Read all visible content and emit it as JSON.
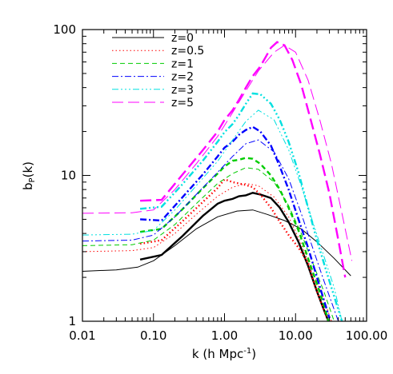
{
  "chart_data": {
    "type": "line",
    "xlabel": "k (h Mpc",
    "xlabel_sup": "-1",
    "xlabel_close": ")",
    "ylabel": "b",
    "ylabel_sub": "P",
    "ylabel_rest": "(k)",
    "x_scale": "log",
    "y_scale": "log",
    "xlim": [
      0.01,
      100
    ],
    "ylim": [
      1,
      100
    ],
    "x_ticks": [
      {
        "value": 0.01,
        "label": "0.01"
      },
      {
        "value": 0.1,
        "label": "0.10"
      },
      {
        "value": 1,
        "label": "1.00"
      },
      {
        "value": 10,
        "label": "10.00"
      },
      {
        "value": 100,
        "label": "100.00"
      }
    ],
    "y_ticks": [
      {
        "value": 1,
        "label": "1"
      },
      {
        "value": 10,
        "label": "10"
      },
      {
        "value": 100,
        "label": "100"
      }
    ],
    "legend_position": "top-left",
    "series": [
      {
        "name": "z=0",
        "color": "#000000",
        "dash": "",
        "legend": true,
        "thin": [
          [
            0.01,
            2.2
          ],
          [
            0.03,
            2.25
          ],
          [
            0.06,
            2.35
          ],
          [
            0.1,
            2.6
          ],
          [
            0.2,
            3.3
          ],
          [
            0.4,
            4.3
          ],
          [
            0.8,
            5.2
          ],
          [
            1.5,
            5.7
          ],
          [
            2.5,
            5.8
          ],
          [
            4,
            5.4
          ],
          [
            7,
            4.9
          ],
          [
            12,
            4.3
          ],
          [
            20,
            3.5
          ],
          [
            35,
            2.7
          ],
          [
            60,
            2.05
          ]
        ],
        "thick": [
          [
            0.065,
            2.65
          ],
          [
            0.13,
            2.85
          ],
          [
            0.25,
            3.8
          ],
          [
            0.5,
            5.3
          ],
          [
            0.8,
            6.4
          ],
          [
            1.0,
            6.7
          ],
          [
            1.3,
            6.9
          ],
          [
            1.6,
            7.2
          ],
          [
            2.0,
            7.3
          ],
          [
            2.5,
            7.6
          ],
          [
            3.2,
            7.4
          ],
          [
            4.5,
            7.0
          ],
          [
            6,
            6.0
          ],
          [
            8,
            4.8
          ],
          [
            11,
            3.5
          ],
          [
            15,
            2.4
          ],
          [
            20,
            1.6
          ],
          [
            25,
            1.2
          ],
          [
            29,
            1.0
          ]
        ]
      },
      {
        "name": "z=0.5",
        "color": "#ff0000",
        "dash": "1.5 3",
        "legend": true,
        "thin": [
          [
            0.01,
            3.0
          ],
          [
            0.05,
            3.05
          ],
          [
            0.1,
            3.2
          ],
          [
            0.2,
            4.0
          ],
          [
            0.4,
            5.4
          ],
          [
            0.8,
            7.2
          ],
          [
            1.3,
            8.3
          ],
          [
            2,
            8.8
          ],
          [
            3,
            8.5
          ],
          [
            5,
            7.1
          ],
          [
            8,
            5.2
          ],
          [
            12,
            3.4
          ],
          [
            17,
            2.2
          ],
          [
            24,
            1.5
          ],
          [
            32,
            1.0
          ]
        ],
        "thick": [
          [
            0.065,
            3.4
          ],
          [
            0.13,
            3.6
          ],
          [
            0.25,
            4.8
          ],
          [
            0.5,
            6.6
          ],
          [
            0.8,
            8.2
          ],
          [
            1.0,
            9.4
          ],
          [
            1.3,
            9.0
          ],
          [
            1.6,
            8.8
          ],
          [
            2.0,
            8.6
          ],
          [
            2.5,
            8.3
          ],
          [
            3.2,
            7.4
          ],
          [
            4.5,
            6.0
          ],
          [
            6,
            4.8
          ],
          [
            8,
            3.9
          ],
          [
            11,
            3.2
          ],
          [
            15,
            2.5
          ],
          [
            20,
            1.6
          ],
          [
            25,
            1.2
          ],
          [
            29,
            1.0
          ]
        ]
      },
      {
        "name": "z=1",
        "color": "#00cc00",
        "dash": "6 4",
        "legend": true,
        "thin": [
          [
            0.01,
            3.3
          ],
          [
            0.05,
            3.35
          ],
          [
            0.1,
            3.6
          ],
          [
            0.2,
            4.6
          ],
          [
            0.4,
            6.4
          ],
          [
            0.8,
            8.8
          ],
          [
            1.3,
            10.3
          ],
          [
            2,
            11.3
          ],
          [
            3,
            11.0
          ],
          [
            5,
            9.0
          ],
          [
            8,
            6.2
          ],
          [
            12,
            4.0
          ],
          [
            17,
            2.6
          ],
          [
            25,
            1.6
          ],
          [
            35,
            1.0
          ]
        ],
        "thick": [
          [
            0.065,
            4.1
          ],
          [
            0.13,
            4.3
          ],
          [
            0.25,
            5.8
          ],
          [
            0.5,
            8.2
          ],
          [
            0.8,
            10.3
          ],
          [
            1.0,
            11.5
          ],
          [
            1.3,
            12.6
          ],
          [
            1.6,
            12.8
          ],
          [
            2.0,
            13.2
          ],
          [
            2.5,
            13.0
          ],
          [
            3.2,
            12.0
          ],
          [
            4.5,
            10.0
          ],
          [
            6,
            8.0
          ],
          [
            8,
            6.0
          ],
          [
            11,
            4.2
          ],
          [
            15,
            2.7
          ],
          [
            20,
            1.8
          ],
          [
            25,
            1.3
          ],
          [
            29,
            1.0
          ]
        ]
      },
      {
        "name": "z=2",
        "color": "#0000ff",
        "dash": "8 3 2 3",
        "legend": true,
        "thin": [
          [
            0.01,
            3.55
          ],
          [
            0.05,
            3.6
          ],
          [
            0.1,
            3.9
          ],
          [
            0.2,
            5.2
          ],
          [
            0.4,
            7.4
          ],
          [
            0.8,
            10.5
          ],
          [
            1.3,
            13.5
          ],
          [
            2,
            16.5
          ],
          [
            3,
            17.5
          ],
          [
            5,
            14.5
          ],
          [
            8,
            9.5
          ],
          [
            12,
            5.5
          ],
          [
            17,
            3.3
          ],
          [
            25,
            1.9
          ],
          [
            40,
            1.0
          ]
        ],
        "thick": [
          [
            0.065,
            5.0
          ],
          [
            0.13,
            4.9
          ],
          [
            0.25,
            7.0
          ],
          [
            0.5,
            10.2
          ],
          [
            0.8,
            13.5
          ],
          [
            1.0,
            15.5
          ],
          [
            1.3,
            17.0
          ],
          [
            1.6,
            19.0
          ],
          [
            2.0,
            20.5
          ],
          [
            2.5,
            21.5
          ],
          [
            3.2,
            20.0
          ],
          [
            4.5,
            16.0
          ],
          [
            6,
            11.5
          ],
          [
            8,
            8.0
          ],
          [
            11,
            5.0
          ],
          [
            15,
            3.2
          ],
          [
            20,
            2.0
          ],
          [
            25,
            1.4
          ],
          [
            30,
            1.05
          ]
        ]
      },
      {
        "name": "z=3",
        "color": "#00e0e0",
        "dash": "8 3 2 3 2 3 2 3",
        "legend": true,
        "thin": [
          [
            0.01,
            3.9
          ],
          [
            0.05,
            3.95
          ],
          [
            0.1,
            4.2
          ],
          [
            0.2,
            5.8
          ],
          [
            0.4,
            8.5
          ],
          [
            0.8,
            12.5
          ],
          [
            1.3,
            17.5
          ],
          [
            2,
            23.5
          ],
          [
            3,
            28.0
          ],
          [
            5,
            24.0
          ],
          [
            8,
            15.0
          ],
          [
            12,
            8.5
          ],
          [
            17,
            5.0
          ],
          [
            25,
            2.8
          ],
          [
            35,
            1.7
          ],
          [
            45,
            1.0
          ]
        ],
        "thick": [
          [
            0.065,
            5.9
          ],
          [
            0.13,
            6.1
          ],
          [
            0.25,
            8.6
          ],
          [
            0.5,
            12.7
          ],
          [
            0.8,
            17.0
          ],
          [
            1.0,
            19.8
          ],
          [
            1.3,
            22.5
          ],
          [
            1.6,
            26.0
          ],
          [
            2.0,
            31.0
          ],
          [
            2.5,
            36.5
          ],
          [
            3.2,
            36.0
          ],
          [
            4.5,
            31.0
          ],
          [
            6,
            24.0
          ],
          [
            8,
            17.0
          ],
          [
            11,
            10.5
          ],
          [
            15,
            6.0
          ],
          [
            20,
            3.6
          ],
          [
            28,
            2.1
          ],
          [
            38,
            1.3
          ],
          [
            45,
            1.0
          ]
        ]
      },
      {
        "name": "z=5",
        "color": "#ff00ff",
        "dash": "14 6",
        "legend": true,
        "thin": [
          [
            0.01,
            5.5
          ],
          [
            0.05,
            5.55
          ],
          [
            0.1,
            5.8
          ],
          [
            0.2,
            8.0
          ],
          [
            0.4,
            12.0
          ],
          [
            0.8,
            18.5
          ],
          [
            1.3,
            27.0
          ],
          [
            2,
            38.0
          ],
          [
            3,
            52.0
          ],
          [
            5,
            70.0
          ],
          [
            7,
            78.0
          ],
          [
            10,
            70.0
          ],
          [
            15,
            45.0
          ],
          [
            22,
            24.0
          ],
          [
            32,
            12.0
          ],
          [
            45,
            5.5
          ],
          [
            62,
            2.6
          ]
        ],
        "thick": [
          [
            0.065,
            6.7
          ],
          [
            0.13,
            6.8
          ],
          [
            0.25,
            10.0
          ],
          [
            0.5,
            15.0
          ],
          [
            0.8,
            20.0
          ],
          [
            1.0,
            24.0
          ],
          [
            1.3,
            28.0
          ],
          [
            1.6,
            33.0
          ],
          [
            2.0,
            40.0
          ],
          [
            2.5,
            48.0
          ],
          [
            3.2,
            56.0
          ],
          [
            4.5,
            75.0
          ],
          [
            5.5,
            82.0
          ],
          [
            7,
            78.0
          ],
          [
            9,
            62.0
          ],
          [
            12,
            42.0
          ],
          [
            16,
            25.0
          ],
          [
            22,
            14.0
          ],
          [
            30,
            7.5
          ],
          [
            40,
            3.6
          ],
          [
            50,
            2.0
          ]
        ]
      }
    ]
  }
}
